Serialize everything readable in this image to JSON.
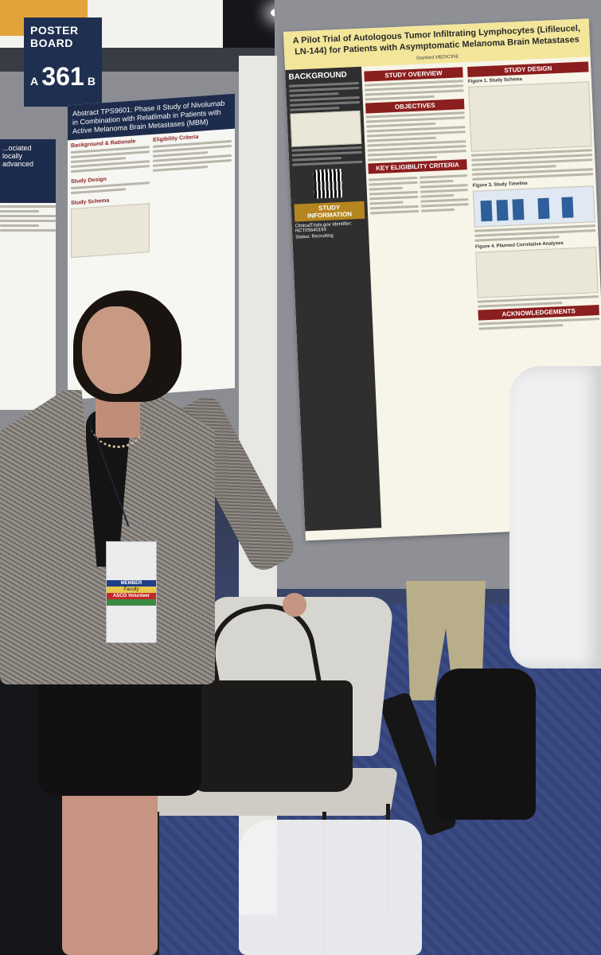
{
  "board_sign": {
    "label": "POSTER BOARD",
    "left": "A",
    "number": "361",
    "right": "B"
  },
  "main_poster": {
    "title": "A Pilot Trial of Autologous Tumor Infiltrating Lymphocytes (Lifileucel, LN-144) for Patients with Asymptomatic Melanoma Brain Metastases",
    "institution": "Stanford MEDICINE",
    "sections": {
      "background": "BACKGROUND",
      "study_overview": "STUDY OVERVIEW",
      "objectives": "OBJECTIVES",
      "eligibility": "KEY ELIGIBILITY CRITERIA",
      "study_information": "STUDY INFORMATION",
      "study_design": "STUDY DESIGN",
      "acknowledgements": "ACKNOWLEDGEMENTS"
    },
    "figures": {
      "fig1": "Figure 1. Study Schema",
      "fig3": "Figure 3. Study Timeline",
      "fig4": "Figure 4. Planned Correlative Analyses"
    },
    "clinicaltrials": "ClinicalTrials.gov Identifier: NCT05640193",
    "status": "Status: Recruiting"
  },
  "side_poster": {
    "title": "Abstract TPS9601: Phase II Study of Nivolumab in Combination with Relatlimab in Patients with Active Melanoma Brain Metastases (MBM)",
    "headings": [
      "Background & Rationale",
      "Study Design",
      "Study Schema",
      "Eligibility Criteria"
    ]
  },
  "far_poster": {
    "title": "...ociated locally advanced"
  },
  "badge": {
    "ribbon_member": "MEMBER",
    "ribbon_faculty": "Faculty",
    "ribbon_volunteer": "ASCO Volunteer"
  }
}
